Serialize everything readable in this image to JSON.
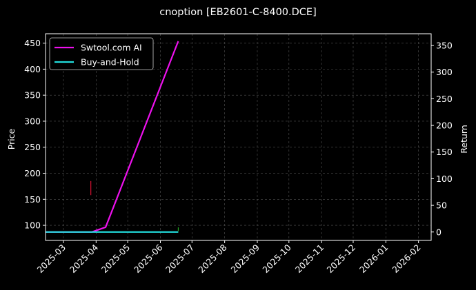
{
  "chart_data": {
    "type": "line",
    "title": "cnoption [EB2601-C-8400.DCE]",
    "ylabel": "Price",
    "y2label": "Return",
    "xlim": [
      "2025-02-12",
      "2026-02-13"
    ],
    "ylim": [
      71,
      468
    ],
    "y2lim": [
      -15.8,
      372
    ],
    "x_ticks": [
      "2025-03",
      "2025-04",
      "2025-05",
      "2025-06",
      "2025-07",
      "2025-08",
      "2025-09",
      "2025-10",
      "2025-11",
      "2025-12",
      "2026-01",
      "2026-02"
    ],
    "y_ticks": [
      100,
      150,
      200,
      250,
      300,
      350,
      400,
      450
    ],
    "y2_ticks": [
      0,
      50,
      100,
      150,
      200,
      250,
      300,
      350
    ],
    "grid": true,
    "legend_placement": "upper-left",
    "series": [
      {
        "name": "Swtool.com AI",
        "axis": "right",
        "color": "#ee11ee",
        "x": [
          "2025-02-12",
          "2025-03-28",
          "2025-04-10",
          "2025-06-18"
        ],
        "y": [
          0,
          0,
          9,
          358
        ]
      },
      {
        "name": "Buy-and-Hold",
        "axis": "right",
        "color": "#22dddd",
        "x": [
          "2025-02-12",
          "2025-06-18"
        ],
        "y": [
          0,
          0
        ]
      }
    ],
    "candles": [
      {
        "date": "2025-03-27",
        "low": 158,
        "high": 185,
        "color": "#dd1133"
      },
      {
        "date": "2025-06-18",
        "low": 89,
        "high": 96,
        "color": "#22aa22"
      }
    ]
  }
}
